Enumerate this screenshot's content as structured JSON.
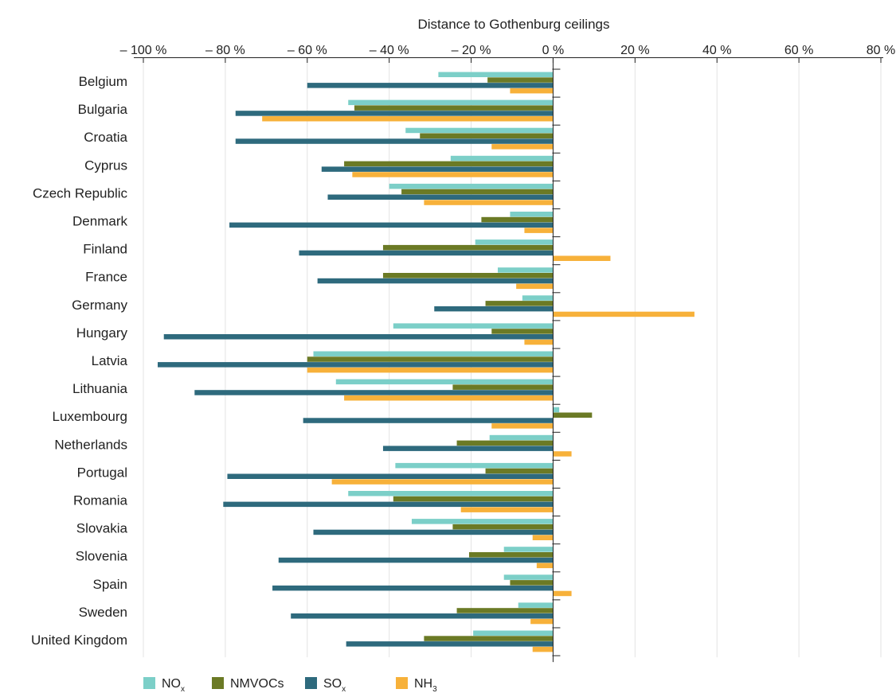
{
  "chart_data": {
    "type": "bar",
    "orientation": "horizontal",
    "title": "Distance to Gothenburg ceilings",
    "x_tick_labels": [
      "– 100 %",
      "– 80 %",
      "– 60 %",
      "– 40 %",
      "– 20 %",
      "0 %",
      "20 %",
      "40 %",
      "60 %",
      "80 %"
    ],
    "x_ticks": [
      -100,
      -80,
      -60,
      -40,
      -20,
      0,
      20,
      40,
      60,
      80
    ],
    "xlim": [
      -100,
      80
    ],
    "grid": true,
    "legend_position": "bottom",
    "categories": [
      "Belgium",
      "Bulgaria",
      "Croatia",
      "Cyprus",
      "Czech Republic",
      "Denmark",
      "Finland",
      "France",
      "Germany",
      "Hungary",
      "Latvia",
      "Lithuania",
      "Luxembourg",
      "Netherlands",
      "Portugal",
      "Romania",
      "Slovakia",
      "Slovenia",
      "Spain",
      "Sweden",
      "United Kingdom"
    ],
    "series": [
      {
        "name": "NO",
        "subscript": "x",
        "color": "#7ccfc8",
        "values": [
          -28,
          -50,
          -36,
          -25,
          -40,
          -10.5,
          -19,
          -13.5,
          -7.5,
          -39,
          -58.5,
          -53,
          1.5,
          -15.5,
          -38.5,
          -50,
          -34.5,
          -12,
          -12,
          -8.5,
          -19.5
        ]
      },
      {
        "name": "NMVOCs",
        "subscript": "",
        "color": "#6b7a25",
        "values": [
          -16,
          -48.5,
          -32.5,
          -51,
          -37,
          -17.5,
          -41.5,
          -41.5,
          -16.5,
          -15,
          -60,
          -24.5,
          9.5,
          -23.5,
          -16.5,
          -39,
          -24.5,
          -20.5,
          -10.5,
          -23.5,
          -31.5
        ]
      },
      {
        "name": "SO",
        "subscript": "x",
        "color": "#2e6a7d",
        "values": [
          -60,
          -77.5,
          -77.5,
          -56.5,
          -55,
          -79,
          -62,
          -57.5,
          -29,
          -95,
          -96.5,
          -87.5,
          -61,
          -41.5,
          -79.5,
          -80.5,
          -58.5,
          -67,
          -68.5,
          -64,
          -50.5
        ]
      },
      {
        "name": "NH",
        "subscript": "3",
        "color": "#f7b13a",
        "values": [
          -10.5,
          -71,
          -15,
          -49,
          -31.5,
          -7,
          14,
          -9,
          34.5,
          -7,
          -60,
          -51,
          -15,
          4.5,
          -54,
          -22.5,
          -5,
          -4,
          4.5,
          -5.5,
          -5
        ]
      }
    ]
  }
}
